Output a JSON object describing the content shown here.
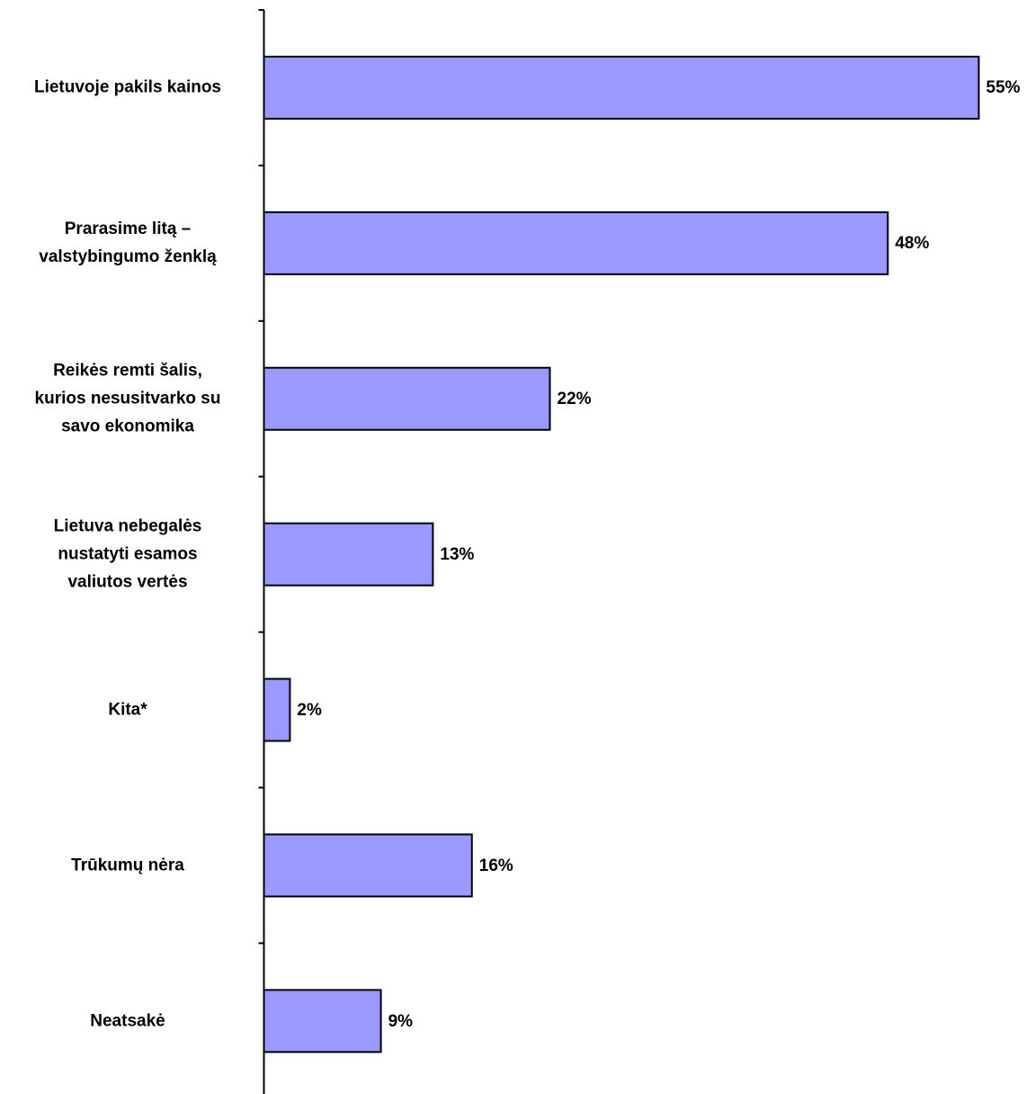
{
  "chart_data": {
    "type": "bar",
    "orientation": "horizontal",
    "categories": [
      "Lietuvoje pakils kainos",
      "Prarasime litą –\nvalstybingumo ženklą",
      "Reikės remti šalis,\nkurios nesusitvarko su\nsavo ekonomika",
      "Lietuva nebegalės\nnustatyti esamos\nvaliutos vertės",
      "Kita*",
      "Trūkumų nėra",
      "Neatsakė"
    ],
    "values": [
      55,
      48,
      22,
      13,
      2,
      16,
      9
    ],
    "value_labels": [
      "55%",
      "48%",
      "22%",
      "13%",
      "2%",
      "16%",
      "9%"
    ],
    "unit": "%",
    "xlim": [
      0,
      55
    ],
    "grid": false,
    "legend": "none",
    "bar_color": "#9999ff",
    "bar_edge_color": "#000000"
  }
}
